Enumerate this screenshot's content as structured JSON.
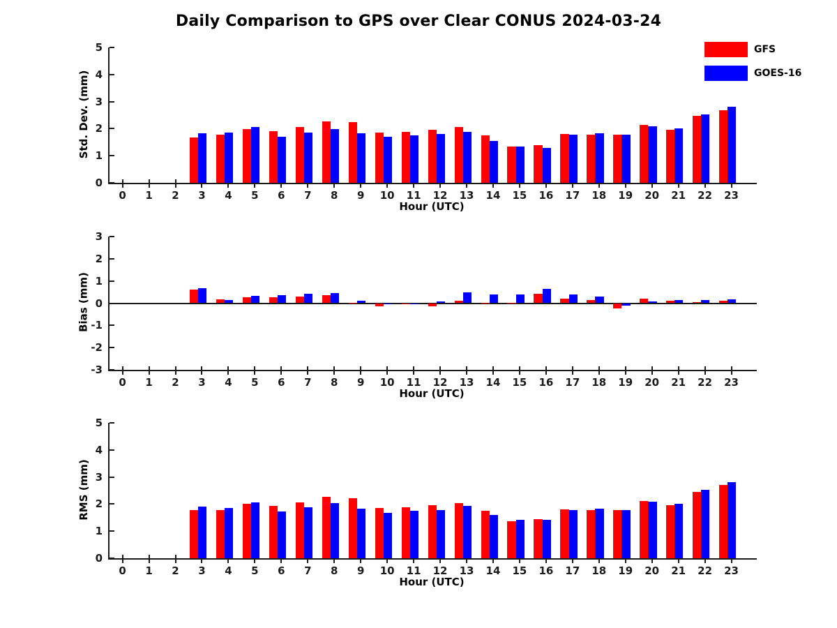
{
  "title": "Daily Comparison to GPS over Clear CONUS 2024-03-24",
  "legend": {
    "items": [
      {
        "label": "GFS",
        "color": "#ff0000"
      },
      {
        "label": "GOES-16",
        "color": "#0000ff"
      }
    ]
  },
  "colors": {
    "gfs": "#ff0000",
    "goes16": "#0000ff",
    "axis": "#1a1a1a"
  },
  "chart_data": [
    {
      "type": "bar",
      "ylabel": "Std. Dev. (mm)",
      "xlabel": "Hour (UTC)",
      "ylim": [
        0,
        5
      ],
      "yticks": [
        0,
        1,
        2,
        3,
        4,
        5
      ],
      "categories": [
        0,
        1,
        2,
        3,
        4,
        5,
        6,
        7,
        8,
        9,
        10,
        11,
        12,
        13,
        14,
        15,
        16,
        17,
        18,
        19,
        20,
        21,
        22,
        23
      ],
      "series": [
        {
          "name": "GFS",
          "color": "#ff0000",
          "values": [
            0,
            0,
            0,
            1.68,
            1.79,
            1.98,
            1.91,
            2.06,
            2.27,
            2.24,
            1.85,
            1.89,
            1.97,
            2.05,
            1.76,
            1.35,
            1.38,
            1.81,
            1.77,
            1.79,
            2.13,
            1.95,
            2.48,
            2.68
          ]
        },
        {
          "name": "GOES-16",
          "color": "#0000ff",
          "values": [
            0,
            0,
            0,
            1.83,
            1.86,
            2.06,
            1.7,
            1.86,
            1.98,
            1.83,
            1.69,
            1.75,
            1.81,
            1.88,
            1.55,
            1.33,
            1.3,
            1.77,
            1.83,
            1.78,
            2.08,
            2.01,
            2.52,
            2.8
          ]
        }
      ]
    },
    {
      "type": "bar",
      "ylabel": "Bias (mm)",
      "xlabel": "Hour (UTC)",
      "ylim": [
        -3,
        3
      ],
      "yticks": [
        -3,
        -2,
        -1,
        0,
        1,
        2,
        3
      ],
      "zero_line": true,
      "categories": [
        0,
        1,
        2,
        3,
        4,
        5,
        6,
        7,
        8,
        9,
        10,
        11,
        12,
        13,
        14,
        15,
        16,
        17,
        18,
        19,
        20,
        21,
        22,
        23
      ],
      "series": [
        {
          "name": "GFS",
          "color": "#ff0000",
          "values": [
            0,
            0,
            0,
            0.62,
            0.18,
            0.26,
            0.27,
            0.31,
            0.35,
            0.02,
            -0.15,
            -0.06,
            -0.13,
            0.1,
            0.02,
            0.02,
            0.43,
            0.2,
            0.14,
            -0.23,
            0.19,
            0.12,
            0.05,
            0.1
          ]
        },
        {
          "name": "GOES-16",
          "color": "#0000ff",
          "values": [
            0,
            0,
            0,
            0.66,
            0.13,
            0.33,
            0.35,
            0.42,
            0.45,
            0.1,
            -0.03,
            -0.02,
            0.08,
            0.48,
            0.4,
            0.4,
            0.64,
            0.38,
            0.29,
            -0.12,
            0.08,
            0.14,
            0.14,
            0.18
          ]
        }
      ]
    },
    {
      "type": "bar",
      "ylabel": "RMS (mm)",
      "xlabel": "Hour (UTC)",
      "ylim": [
        0,
        5
      ],
      "yticks": [
        0,
        1,
        2,
        3,
        4,
        5
      ],
      "categories": [
        0,
        1,
        2,
        3,
        4,
        5,
        6,
        7,
        8,
        9,
        10,
        11,
        12,
        13,
        14,
        15,
        16,
        17,
        18,
        19,
        20,
        21,
        22,
        23
      ],
      "series": [
        {
          "name": "GFS",
          "color": "#ff0000",
          "values": [
            0,
            0,
            0,
            1.77,
            1.79,
            2.01,
            1.93,
            2.06,
            2.26,
            2.22,
            1.86,
            1.88,
            1.95,
            2.04,
            1.74,
            1.36,
            1.45,
            1.8,
            1.77,
            1.77,
            2.12,
            1.96,
            2.46,
            2.7
          ]
        },
        {
          "name": "GOES-16",
          "color": "#0000ff",
          "values": [
            0,
            0,
            0,
            1.92,
            1.85,
            2.06,
            1.72,
            1.87,
            2.03,
            1.82,
            1.68,
            1.75,
            1.77,
            1.93,
            1.6,
            1.41,
            1.43,
            1.78,
            1.83,
            1.77,
            2.08,
            2.01,
            2.52,
            2.8
          ]
        }
      ]
    }
  ]
}
